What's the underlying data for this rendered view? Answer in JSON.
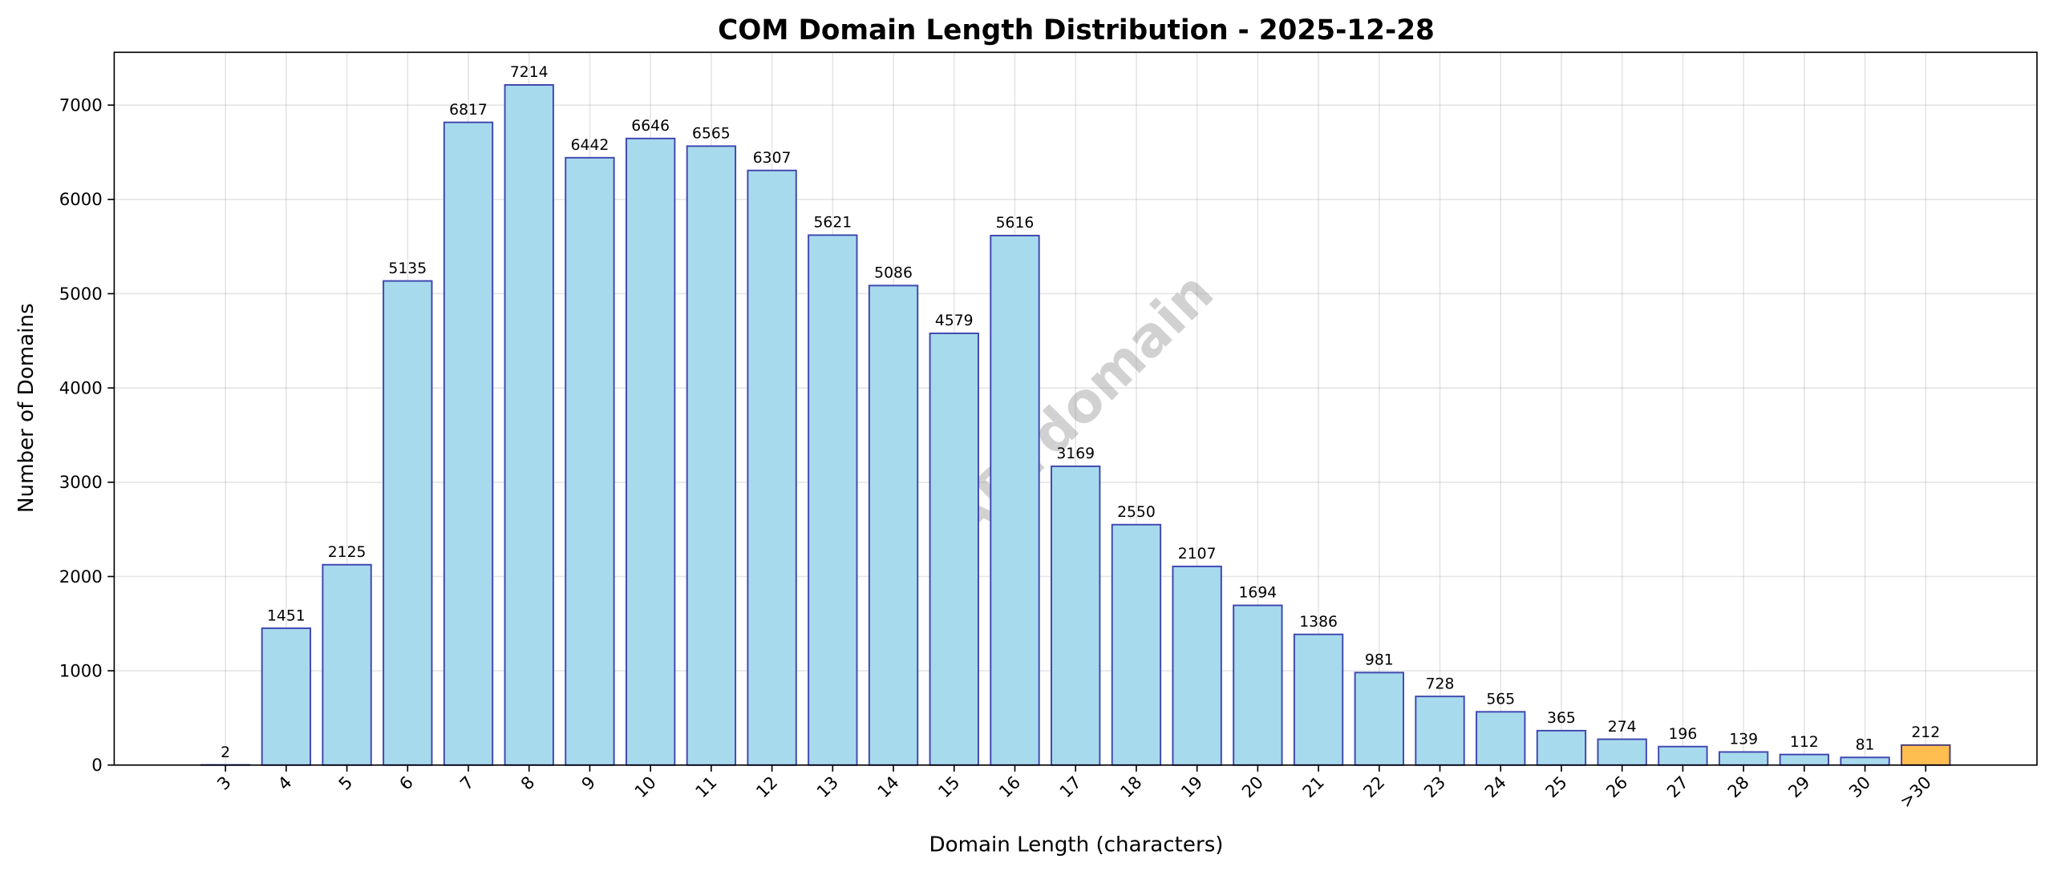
{
  "chart_data": {
    "type": "bar",
    "title": "COM Domain Length Distribution - 2025-12-28",
    "xlabel": "Domain Length (characters)",
    "ylabel": "Number of Domains",
    "categories": [
      "3",
      "4",
      "5",
      "6",
      "7",
      "8",
      "9",
      "10",
      "11",
      "12",
      "13",
      "14",
      "15",
      "16",
      "17",
      "18",
      "19",
      "20",
      "21",
      "22",
      "23",
      "24",
      "25",
      "26",
      "27",
      "28",
      "29",
      "30",
      ">30"
    ],
    "values": [
      2,
      1451,
      2125,
      5135,
      6817,
      7214,
      6442,
      6646,
      6565,
      6307,
      5621,
      5086,
      4579,
      5616,
      3169,
      2550,
      2107,
      1694,
      1386,
      981,
      728,
      565,
      365,
      274,
      196,
      139,
      112,
      81,
      212
    ],
    "ylim": [
      0,
      7560
    ],
    "yticks": [
      0,
      1000,
      2000,
      3000,
      4000,
      5000,
      6000,
      7000
    ],
    "grid": true,
    "data_labels": true,
    "colors": {
      "bar": "#a8daed",
      "bar_edge": "#3f48b0",
      "highlight_bar": "#ffbe4f",
      "highlight_edge": "#4a3f7a"
    },
    "highlight_category": ">30",
    "watermark": "ABTdomain"
  }
}
